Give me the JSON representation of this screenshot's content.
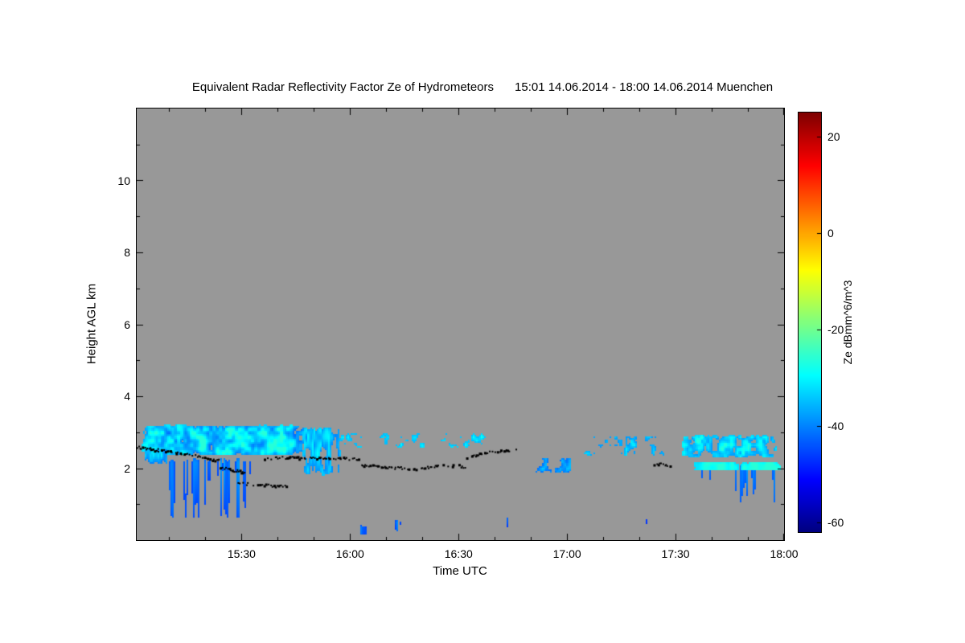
{
  "page": {
    "background": "#ffffff"
  },
  "chart_data": {
    "type": "heatmap",
    "title": "Equivalent Radar Reflectivity Factor Ze of Hydrometeors",
    "period_label": "15:01 14.06.2014 - 18:00 14.06.2014 Muenchen",
    "xlabel": "Time UTC",
    "ylabel": "Height AGL km",
    "x_range": [
      "15:01",
      "18:00"
    ],
    "x_ticks": [
      "15:30",
      "16:00",
      "16:30",
      "17:00",
      "17:30",
      "18:00"
    ],
    "x_minor_step_min": 10,
    "y_range_km": [
      0,
      12
    ],
    "y_ticks_km": [
      2,
      4,
      6,
      8,
      10
    ],
    "y_minor_step_km": 1,
    "plot_background": "#989898",
    "frame_color": "#000000",
    "colorbar": {
      "label": "Ze dBmm^6/m^3",
      "ticks": [
        20,
        0,
        -20,
        -40,
        -60
      ],
      "value_range": [
        -62,
        25
      ],
      "colormap": "jet"
    },
    "echo_regions": [
      {
        "t": [
          1,
          50
        ],
        "h": [
          2.35,
          3.25
        ],
        "base": -36,
        "spread": 9,
        "density": 0.85,
        "sx": 2.4,
        "sy": 0.3,
        "seed": 1
      },
      {
        "t": [
          2,
          10
        ],
        "h": [
          2.1,
          2.6
        ],
        "base": -40,
        "spread": 7,
        "density": 0.55,
        "sx": 1.5,
        "sy": 0.4,
        "seed": 14
      },
      {
        "t": [
          7,
          38
        ],
        "h": [
          0.35,
          2.5
        ],
        "base": -45,
        "spread": 8,
        "density": 0.5,
        "sx": 0.9,
        "sy": 6.0,
        "seed": 2,
        "streak": true
      },
      {
        "t": [
          46,
          58
        ],
        "h": [
          1.7,
          3.3
        ],
        "base": -38,
        "spread": 8,
        "density": 0.6,
        "sx": 1.5,
        "sy": 0.6,
        "seed": 4
      },
      {
        "t": [
          50,
          104
        ],
        "h": [
          2.55,
          3.05
        ],
        "base": -37,
        "spread": 7,
        "density": 0.38,
        "sx": 2.0,
        "sy": 0.26,
        "seed": 3
      },
      {
        "t": [
          110,
          122
        ],
        "h": [
          1.85,
          2.35
        ],
        "base": -41,
        "spread": 7,
        "density": 0.55,
        "sx": 1.8,
        "sy": 0.3,
        "seed": 5
      },
      {
        "t": [
          122,
          152
        ],
        "h": [
          2.3,
          3.0
        ],
        "base": -39,
        "spread": 8,
        "density": 0.45,
        "sx": 2.0,
        "sy": 0.3,
        "seed": 6
      },
      {
        "t": [
          150,
          180
        ],
        "h": [
          2.25,
          3.0
        ],
        "base": -36,
        "spread": 8,
        "density": 0.62,
        "sx": 2.2,
        "sy": 0.3,
        "seed": 7
      },
      {
        "t": [
          154,
          180
        ],
        "h": [
          0.75,
          2.3
        ],
        "base": -44,
        "spread": 8,
        "density": 0.45,
        "sx": 1.2,
        "sy": 5.0,
        "seed": 8,
        "streak": true
      },
      {
        "t": [
          152,
          180
        ],
        "h": [
          1.95,
          2.2
        ],
        "base": -31,
        "spread": 4,
        "density": 0.7,
        "sx": 3.0,
        "sy": 0.5,
        "seed": 9
      },
      {
        "t": [
          62.5,
          64.5
        ],
        "h": [
          0.15,
          0.45
        ],
        "base": -46,
        "spread": 5,
        "density": 0.65,
        "sx": 0.8,
        "sy": 0.8,
        "seed": 10
      },
      {
        "t": [
          72,
          74
        ],
        "h": [
          0.25,
          0.6
        ],
        "base": -46,
        "spread": 5,
        "density": 0.55,
        "sx": 0.8,
        "sy": 0.8,
        "seed": 11
      },
      {
        "t": [
          103,
          104.5
        ],
        "h": [
          0.3,
          0.7
        ],
        "base": -47,
        "spread": 5,
        "density": 0.5,
        "sx": 0.8,
        "sy": 0.8,
        "seed": 12
      },
      {
        "t": [
          141,
          143
        ],
        "h": [
          0.3,
          0.8
        ],
        "base": -47,
        "spread": 5,
        "density": 0.5,
        "sx": 0.8,
        "sy": 0.8,
        "seed": 13
      }
    ],
    "overlay_markers": {
      "color": "#000000",
      "segments": [
        {
          "points": [
            [
              1,
              2.6
            ],
            [
              8,
              2.5
            ],
            [
              14,
              2.42
            ],
            [
              20,
              2.32
            ],
            [
              24,
              2.22
            ]
          ],
          "seed": 21
        },
        {
          "points": [
            [
              24,
              2.05
            ],
            [
              28,
              1.95
            ],
            [
              31,
              1.9
            ]
          ],
          "seed": 22
        },
        {
          "points": [
            [
              29,
              1.6
            ],
            [
              34,
              1.55
            ],
            [
              39,
              1.52
            ],
            [
              43,
              1.55
            ]
          ],
          "seed": 23
        },
        {
          "points": [
            [
              36,
              2.28
            ],
            [
              44,
              2.32
            ],
            [
              52,
              2.28
            ],
            [
              58,
              2.3
            ],
            [
              63,
              2.25
            ]
          ],
          "seed": 24
        },
        {
          "points": [
            [
              63,
              2.1
            ],
            [
              70,
              2.05
            ],
            [
              76,
              2.0
            ],
            [
              82,
              2.05
            ],
            [
              88,
              2.1
            ],
            [
              92,
              2.05
            ]
          ],
          "seed": 25
        },
        {
          "points": [
            [
              92,
              2.3
            ],
            [
              97,
              2.45
            ],
            [
              102,
              2.5
            ],
            [
              106,
              2.55
            ]
          ],
          "seed": 26
        },
        {
          "points": [
            [
              144,
              2.15
            ],
            [
              149,
              2.1
            ]
          ],
          "seed": 27
        }
      ]
    }
  }
}
